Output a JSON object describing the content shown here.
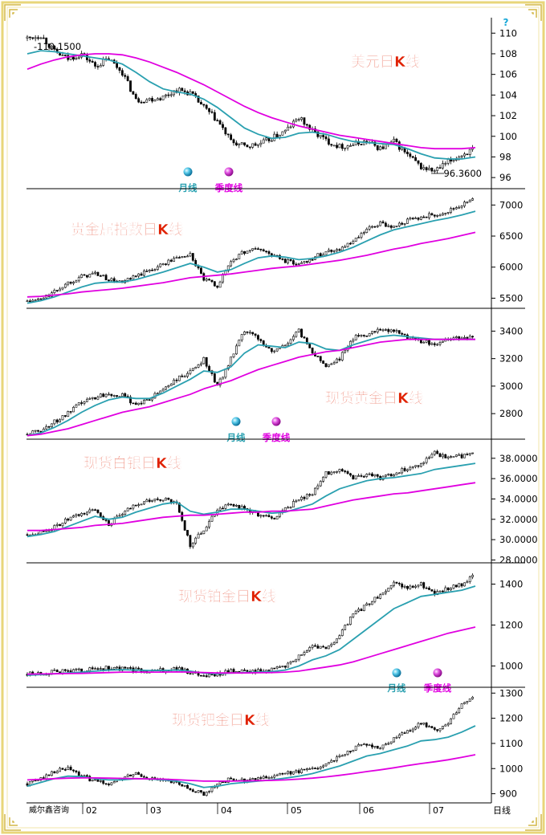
{
  "colors": {
    "frame": "#e8d67a",
    "ma_month": "#2aa0b0",
    "ma_quarter": "#e000e0",
    "title": "#e02000",
    "candle": "#000000"
  },
  "watermark": "威尔鑫咨询",
  "x_axis": {
    "labels": [
      "02",
      "03",
      "04",
      "05",
      "06",
      "07"
    ],
    "unit": "日线"
  },
  "chart_data": [
    {
      "type": "candlestick",
      "title": "美元日K线",
      "ylim": [
        95,
        111.5
      ],
      "y_ticks": [
        96,
        98,
        100,
        102,
        104,
        106,
        108,
        110
      ],
      "annotations": {
        "high": "110.1500",
        "low": "96.3600"
      },
      "legend": [
        {
          "name": "月线",
          "color": "#2aa0b0"
        },
        {
          "name": "季度线",
          "color": "#e000e0"
        }
      ],
      "question_mark": "?",
      "series": [
        {
          "name": "price",
          "values": [
            109.5,
            109.8,
            108.2,
            107.5,
            108.0,
            106.8,
            107.5,
            106.2,
            103.5,
            103.6,
            103.8,
            104.5,
            104.2,
            102.8,
            101.5,
            99.5,
            99.0,
            99.2,
            99.8,
            100.5,
            101.8,
            100.5,
            99.6,
            99.0,
            99.2,
            99.5,
            98.8,
            99.5,
            98.2,
            97.0,
            96.6,
            97.5,
            98.2,
            98.8
          ]
        },
        {
          "name": "月线",
          "values": [
            108.0,
            108.3,
            108.2,
            108.0,
            107.8,
            107.6,
            107.4,
            107.0,
            106.2,
            105.3,
            104.6,
            104.3,
            104.1,
            103.6,
            102.8,
            101.8,
            100.8,
            100.2,
            99.8,
            99.9,
            100.3,
            100.4,
            100.2,
            99.8,
            99.5,
            99.4,
            99.3,
            99.2,
            98.8,
            98.3,
            97.9,
            97.8,
            97.8,
            98.0
          ]
        },
        {
          "name": "季度线",
          "values": [
            106.5,
            107.0,
            107.4,
            107.7,
            107.9,
            108.0,
            108.0,
            107.9,
            107.6,
            107.2,
            106.7,
            106.2,
            105.6,
            105.0,
            104.3,
            103.6,
            102.9,
            102.3,
            101.8,
            101.4,
            101.0,
            100.7,
            100.4,
            100.1,
            99.9,
            99.7,
            99.5,
            99.3,
            99.1,
            98.9,
            98.8,
            98.8,
            98.8,
            98.9
          ]
        }
      ]
    },
    {
      "type": "candlestick",
      "title": "贵金属指数日K线",
      "ylim": [
        5350,
        7250
      ],
      "y_ticks": [
        5500,
        6000,
        6500,
        7000
      ],
      "series": [
        {
          "name": "price",
          "values": [
            5450,
            5480,
            5600,
            5750,
            5850,
            5900,
            5800,
            5750,
            5850,
            5950,
            6050,
            6150,
            6200,
            5800,
            5700,
            6100,
            6250,
            6300,
            6200,
            6100,
            6050,
            6150,
            6250,
            6300,
            6400,
            6600,
            6700,
            6650,
            6750,
            6800,
            6850,
            6900,
            7000,
            7100
          ]
        },
        {
          "name": "月线",
          "values": [
            5420,
            5460,
            5520,
            5600,
            5680,
            5740,
            5760,
            5760,
            5800,
            5860,
            5920,
            5990,
            6060,
            6000,
            5920,
            5960,
            6060,
            6150,
            6180,
            6160,
            6120,
            6140,
            6180,
            6240,
            6320,
            6420,
            6520,
            6600,
            6650,
            6700,
            6750,
            6790,
            6840,
            6900
          ]
        },
        {
          "name": "季度线",
          "values": [
            5520,
            5530,
            5550,
            5570,
            5600,
            5620,
            5640,
            5660,
            5690,
            5720,
            5750,
            5790,
            5830,
            5850,
            5870,
            5890,
            5920,
            5950,
            5980,
            6000,
            6020,
            6050,
            6080,
            6110,
            6150,
            6190,
            6240,
            6290,
            6330,
            6380,
            6420,
            6460,
            6510,
            6560
          ]
        }
      ]
    },
    {
      "type": "candlestick",
      "title": "现货黄金日K线",
      "ylim": [
        2620,
        3560
      ],
      "y_ticks": [
        2800,
        3000,
        3200,
        3400
      ],
      "legend": [
        {
          "name": "月线",
          "color": "#2aa0b0"
        },
        {
          "name": "季度线",
          "color": "#e000e0"
        }
      ],
      "series": [
        {
          "name": "price",
          "values": [
            2650,
            2680,
            2740,
            2800,
            2880,
            2920,
            2950,
            2930,
            2870,
            2900,
            2980,
            3050,
            3100,
            3200,
            3000,
            3200,
            3400,
            3350,
            3250,
            3300,
            3400,
            3250,
            3150,
            3200,
            3350,
            3380,
            3420,
            3400,
            3360,
            3330,
            3300,
            3340,
            3360,
            3350
          ]
        },
        {
          "name": "月线",
          "values": [
            2640,
            2660,
            2700,
            2750,
            2810,
            2860,
            2900,
            2920,
            2910,
            2910,
            2950,
            3000,
            3050,
            3110,
            3100,
            3140,
            3240,
            3300,
            3290,
            3280,
            3320,
            3310,
            3270,
            3260,
            3300,
            3330,
            3360,
            3370,
            3360,
            3350,
            3340,
            3340,
            3340,
            3340
          ]
        },
        {
          "name": "季度线",
          "values": [
            2640,
            2650,
            2670,
            2690,
            2720,
            2750,
            2780,
            2810,
            2830,
            2850,
            2880,
            2910,
            2940,
            2980,
            3010,
            3040,
            3080,
            3120,
            3150,
            3180,
            3210,
            3230,
            3250,
            3260,
            3280,
            3300,
            3320,
            3330,
            3340,
            3340,
            3340,
            3340,
            3340,
            3340
          ]
        }
      ]
    },
    {
      "type": "candlestick",
      "title": "现货白银日K线",
      "ylim": [
        27.8,
        39.8
      ],
      "y_ticks": [
        "28.0000",
        "30.0000",
        "32.0000",
        "34.0000",
        "36.0000",
        "38.0000"
      ],
      "series": [
        {
          "name": "price",
          "values": [
            30.5,
            30.8,
            31.2,
            32.0,
            32.5,
            33.0,
            31.5,
            32.5,
            33.5,
            33.8,
            34.0,
            33.5,
            29.5,
            31.0,
            33.0,
            33.5,
            33.0,
            32.5,
            32.0,
            33.0,
            34.0,
            34.5,
            36.5,
            37.0,
            36.0,
            36.5,
            36.0,
            36.5,
            37.0,
            37.5,
            38.5,
            38.0,
            38.2,
            38.5
          ]
        },
        {
          "name": "月线",
          "values": [
            30.3,
            30.5,
            30.8,
            31.3,
            31.8,
            32.3,
            32.0,
            32.2,
            32.7,
            33.1,
            33.5,
            33.7,
            32.8,
            32.5,
            32.7,
            33.0,
            33.0,
            32.8,
            32.6,
            32.7,
            33.1,
            33.5,
            34.3,
            35.0,
            35.4,
            35.8,
            36.0,
            36.1,
            36.3,
            36.5,
            36.9,
            37.1,
            37.3,
            37.5
          ]
        },
        {
          "name": "季度线",
          "values": [
            30.9,
            30.9,
            31.0,
            31.1,
            31.2,
            31.4,
            31.5,
            31.6,
            31.8,
            32.0,
            32.2,
            32.3,
            32.4,
            32.4,
            32.5,
            32.6,
            32.7,
            32.7,
            32.8,
            32.8,
            32.9,
            33.0,
            33.3,
            33.6,
            33.9,
            34.1,
            34.3,
            34.5,
            34.6,
            34.8,
            35.0,
            35.2,
            35.4,
            35.6
          ]
        }
      ]
    },
    {
      "type": "candlestick",
      "title": "现货铂金日K线",
      "ylim": [
        900,
        1500
      ],
      "y_ticks": [
        1000,
        1200,
        1400
      ],
      "legend": [
        {
          "name": "月线",
          "color": "#2aa0b0"
        },
        {
          "name": "季度线",
          "color": "#e000e0"
        }
      ],
      "series": [
        {
          "name": "price",
          "values": [
            960,
            965,
            970,
            975,
            980,
            985,
            990,
            985,
            980,
            975,
            980,
            985,
            970,
            950,
            960,
            975,
            970,
            975,
            980,
            1000,
            1050,
            1100,
            1080,
            1150,
            1250,
            1300,
            1350,
            1400,
            1380,
            1400,
            1350,
            1380,
            1400,
            1450
          ]
        },
        {
          "name": "月线",
          "values": [
            955,
            958,
            962,
            966,
            970,
            975,
            980,
            982,
            980,
            978,
            978,
            980,
            975,
            965,
            962,
            965,
            968,
            970,
            973,
            980,
            1000,
            1030,
            1050,
            1080,
            1130,
            1180,
            1230,
            1280,
            1310,
            1340,
            1350,
            1360,
            1370,
            1390
          ]
        },
        {
          "name": "季度线",
          "values": [
            960,
            961,
            962,
            963,
            964,
            966,
            968,
            970,
            970,
            970,
            970,
            971,
            970,
            968,
            966,
            966,
            966,
            967,
            968,
            970,
            975,
            985,
            995,
            1005,
            1020,
            1040,
            1060,
            1080,
            1100,
            1120,
            1140,
            1160,
            1175,
            1190
          ]
        }
      ]
    },
    {
      "type": "candlestick",
      "title": "现货钯金日K线",
      "ylim": [
        870,
        1320
      ],
      "y_ticks": [
        900,
        1000,
        1100,
        1200,
        1300
      ],
      "series": [
        {
          "name": "price",
          "values": [
            940,
            960,
            990,
            1000,
            970,
            950,
            940,
            960,
            980,
            960,
            950,
            940,
            920,
            900,
            940,
            960,
            950,
            960,
            970,
            980,
            990,
            1000,
            1020,
            1050,
            1080,
            1100,
            1080,
            1120,
            1150,
            1180,
            1150,
            1180,
            1250,
            1290
          ]
        },
        {
          "name": "月线",
          "values": [
            930,
            945,
            960,
            970,
            968,
            960,
            955,
            955,
            960,
            958,
            955,
            950,
            940,
            925,
            930,
            940,
            945,
            950,
            955,
            962,
            970,
            980,
            995,
            1010,
            1030,
            1050,
            1060,
            1075,
            1090,
            1110,
            1115,
            1125,
            1145,
            1170
          ]
        },
        {
          "name": "季度线",
          "values": [
            955,
            957,
            960,
            962,
            963,
            963,
            962,
            961,
            960,
            959,
            958,
            956,
            953,
            950,
            950,
            950,
            951,
            952,
            953,
            955,
            958,
            962,
            967,
            973,
            980,
            988,
            995,
            1003,
            1012,
            1020,
            1027,
            1035,
            1045,
            1055
          ]
        }
      ]
    }
  ]
}
